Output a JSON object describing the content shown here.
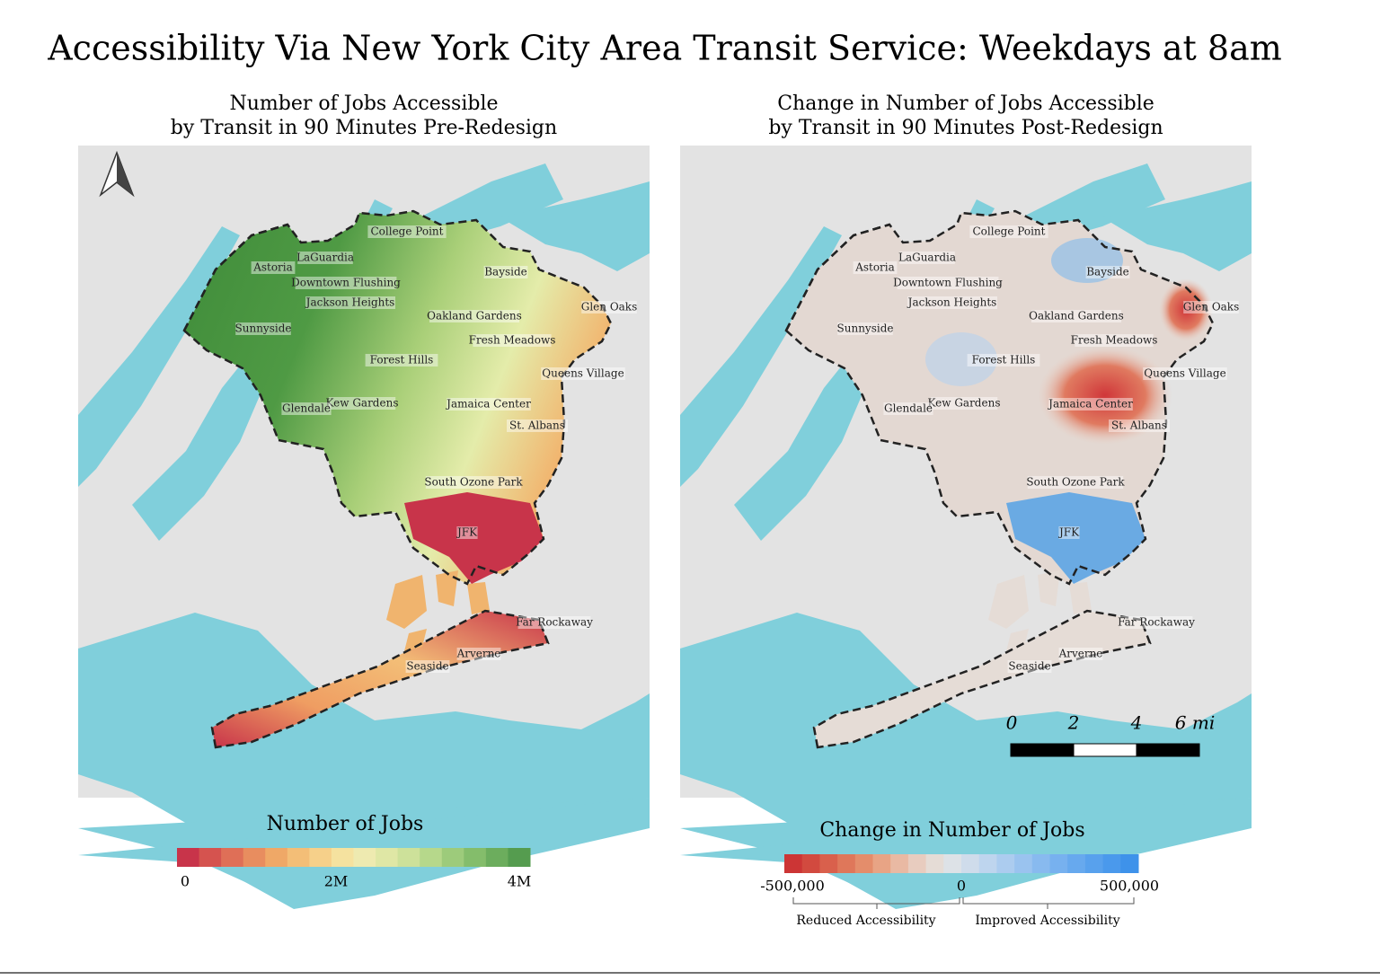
{
  "title": "Accessibility Via New York City Area Transit Service: Weekdays at 8am",
  "maps": [
    {
      "subtitle": [
        "Number of Jobs Accessible",
        "by Transit in 90 Minutes Pre-Redesign"
      ]
    },
    {
      "subtitle": [
        "Change in Number of Jobs Accessible",
        "by Transit in 90 Minutes Post-Redesign"
      ]
    }
  ],
  "place_labels": [
    "College Point",
    "LaGuardia",
    "Astoria",
    "Bayside",
    "Downtown Flushing",
    "Jackson Heights",
    "Glen Oaks",
    "Oakland Gardens",
    "Sunnyside",
    "Fresh Meadows",
    "Forest Hills",
    "Queens Village",
    "Kew Gardens",
    "Jamaica Center",
    "Glendale",
    "St. Albans",
    "South Ozone Park",
    "JFK",
    "Far Rockaway",
    "Arverne",
    "Seaside"
  ],
  "legends": [
    {
      "title": "Number of Jobs",
      "colors": [
        "#c8344a",
        "#d5534f",
        "#df6f57",
        "#e88d5f",
        "#efa867",
        "#f3be77",
        "#f6d08a",
        "#f5e29f",
        "#eeeab0",
        "#dfe7a5",
        "#cde19a",
        "#b6d88b",
        "#9dcb7b",
        "#84bd6b",
        "#6cad5d",
        "#559c4f"
      ],
      "tick_labels": [
        "0",
        "2M",
        "4M"
      ]
    },
    {
      "title": "Change in Number of Jobs",
      "colors": [
        "#cc3535",
        "#d24a3f",
        "#d9604c",
        "#df775a",
        "#e48d6b",
        "#e8a485",
        "#e9b9a3",
        "#e8ccbf",
        "#e5dcd6",
        "#dde2e7",
        "#cfdceb",
        "#bed5ee",
        "#acccef",
        "#9ac3ef",
        "#88baef",
        "#77b1ef",
        "#67a9ee",
        "#58a1ed",
        "#4a99ec",
        "#3e92ea"
      ],
      "tick_labels": [
        "-500,000",
        "0",
        "500,000"
      ],
      "notes": [
        "Reduced Accessibility",
        "Improved Accessibility"
      ]
    }
  ],
  "scale_bar": {
    "labels": [
      "0",
      "2",
      "4",
      "6 mi"
    ]
  }
}
